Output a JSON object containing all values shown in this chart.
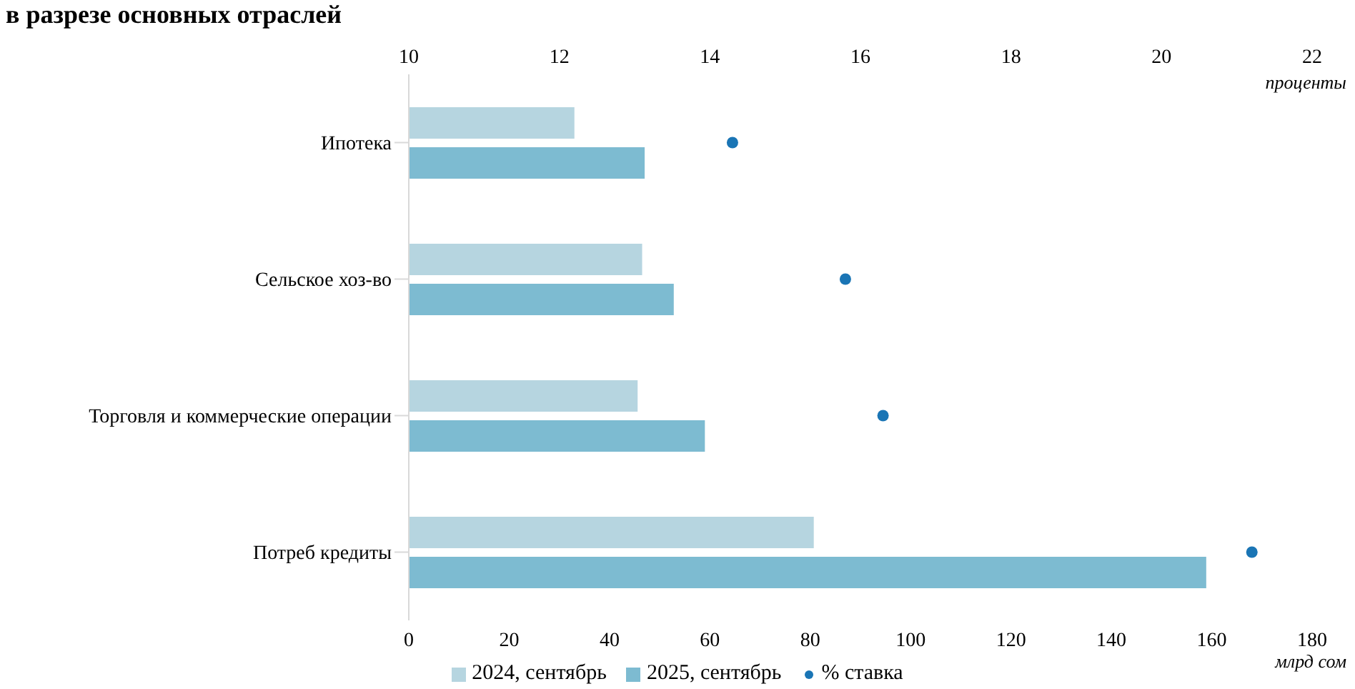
{
  "chart_data": {
    "type": "bar",
    "orientation": "horizontal",
    "title": "в разрезе основных отраслей",
    "xlabel": "млрд сом",
    "x2label": "проценты",
    "categories": [
      "Ипотека",
      "Сельское хоз-во",
      "Торговля и коммерческие  операции",
      "Потреб кредиты"
    ],
    "series": [
      {
        "name": "2024, сентябрь",
        "color": "#b6d5e0",
        "values": [
          33,
          46.5,
          45.6,
          80.7
        ]
      },
      {
        "name": "2025, сентябрь",
        "color": "#7dbbd1",
        "values": [
          47,
          52.8,
          59,
          158.9
        ]
      },
      {
        "name": "% ставка",
        "type": "scatter",
        "axis": "x2",
        "color": "#1a75b5",
        "marker": "circle",
        "values": [
          14.3,
          15.8,
          16.3,
          21.2
        ]
      }
    ],
    "xlim": [
      0,
      180
    ],
    "xticks": [
      0,
      20,
      40,
      60,
      80,
      100,
      120,
      140,
      160,
      180
    ],
    "x2lim": [
      10,
      22
    ],
    "x2ticks": [
      10,
      12,
      14,
      16,
      18,
      20,
      22
    ],
    "grid": false,
    "legend": "bottom"
  }
}
